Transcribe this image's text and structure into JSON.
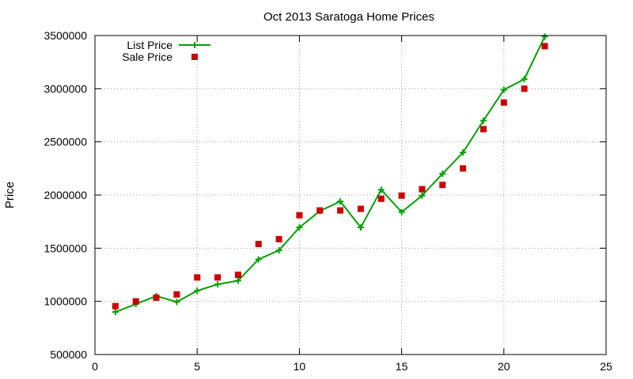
{
  "chart_data": {
    "type": "line",
    "title": "Oct 2013 Saratoga Home Prices",
    "xlabel": "",
    "ylabel": "Price",
    "xlim": [
      0,
      25
    ],
    "ylim": [
      500000,
      3500000
    ],
    "x_ticks": [
      0,
      5,
      10,
      15,
      20,
      25
    ],
    "y_ticks": [
      500000,
      1000000,
      1500000,
      2000000,
      2500000,
      3000000,
      3500000
    ],
    "grid": true,
    "legend_position": "top-left",
    "series": [
      {
        "name": "List Price",
        "style": "line-plus",
        "color": "#00a000",
        "x": [
          1,
          2,
          3,
          4,
          5,
          6,
          7,
          8,
          9,
          10,
          11,
          12,
          13,
          14,
          15,
          16,
          17,
          18,
          19,
          20,
          21,
          22
        ],
        "values": [
          900000,
          975000,
          1050000,
          995000,
          1100000,
          1160000,
          1195000,
          1395000,
          1480000,
          1695000,
          1850000,
          1940000,
          1695000,
          2050000,
          1840000,
          1995000,
          2200000,
          2400000,
          2700000,
          2990000,
          3090000,
          3490000
        ]
      },
      {
        "name": "Sale Price",
        "style": "square-marker",
        "color": "#cc0000",
        "x": [
          1,
          2,
          3,
          4,
          5,
          6,
          7,
          8,
          9,
          10,
          11,
          12,
          13,
          14,
          15,
          16,
          17,
          18,
          19,
          20,
          21,
          22
        ],
        "values": [
          955000,
          1000000,
          1035000,
          1065000,
          1225000,
          1225000,
          1250000,
          1540000,
          1585000,
          1810000,
          1855000,
          1855000,
          1870000,
          1965000,
          1995000,
          2055000,
          2095000,
          2250000,
          2620000,
          2870000,
          3000000,
          3400000
        ]
      }
    ]
  }
}
